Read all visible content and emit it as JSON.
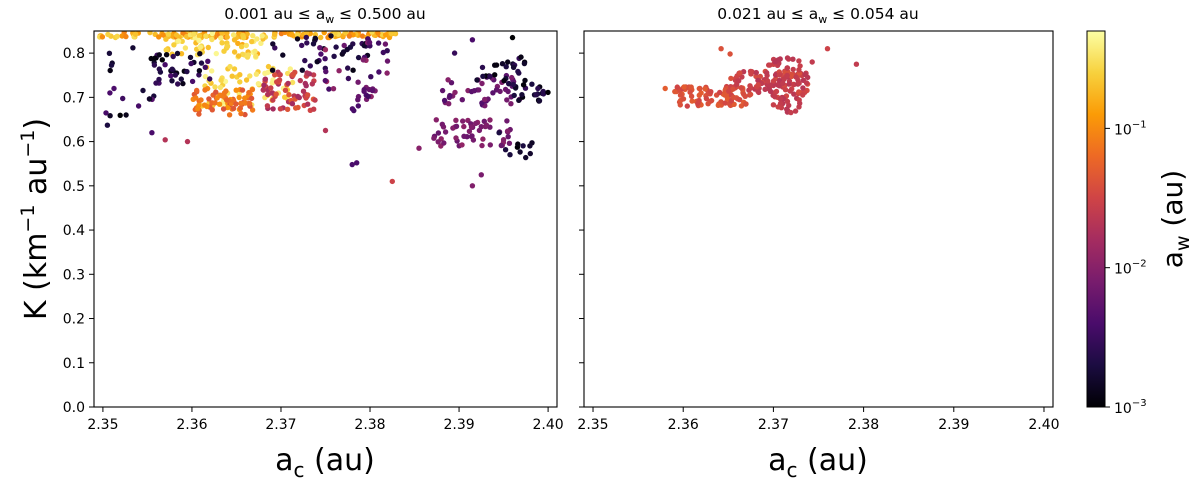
{
  "chart_data": [
    {
      "type": "scatter",
      "title": "0.001 au ≤ a_w ≤ 0.500 au",
      "title_parts": {
        "left": "0.001 au  ≤  a",
        "sub": "w",
        "right": "  ≤  0.500 au"
      },
      "xlabel": "a_c (au)",
      "ylabel": "K (km⁻¹ au⁻¹)",
      "xlim": [
        2.349,
        2.401
      ],
      "ylim": [
        0.0,
        0.85
      ],
      "grid": false,
      "color_variable": "a_w (au)",
      "xticks": [
        "2.35",
        "2.36",
        "2.37",
        "2.38",
        "2.39",
        "2.40"
      ],
      "yticks": [
        "0.0",
        "0.1",
        "0.2",
        "0.3",
        "0.4",
        "0.5",
        "0.6",
        "0.7",
        "0.8"
      ],
      "clusters": [
        {
          "x": [
            2.3495,
            2.383
          ],
          "y": [
            0.835,
            0.848
          ],
          "aw_range": [
            0.08,
            0.3
          ],
          "n": 150
        },
        {
          "x": [
            2.357,
            2.368
          ],
          "y": [
            0.79,
            0.845
          ],
          "aw_range": [
            0.15,
            0.45
          ],
          "n": 70
        },
        {
          "x": [
            2.361,
            2.372
          ],
          "y": [
            0.68,
            0.78
          ],
          "aw_range": [
            0.2,
            0.45
          ],
          "n": 60
        },
        {
          "x": [
            2.36,
            2.367
          ],
          "y": [
            0.66,
            0.72
          ],
          "aw_range": [
            0.04,
            0.12
          ],
          "n": 70
        },
        {
          "x": [
            2.368,
            2.374
          ],
          "y": [
            0.67,
            0.76
          ],
          "aw_range": [
            0.015,
            0.05
          ],
          "n": 70
        },
        {
          "x": [
            2.355,
            2.362
          ],
          "y": [
            0.73,
            0.8
          ],
          "aw_range": [
            0.001,
            0.004
          ],
          "n": 40
        },
        {
          "x": [
            2.369,
            2.382
          ],
          "y": [
            0.76,
            0.84
          ],
          "aw_range": [
            0.001,
            0.004
          ],
          "n": 40
        },
        {
          "x": [
            2.35,
            2.356
          ],
          "y": [
            0.64,
            0.82
          ],
          "aw_range": [
            0.001,
            0.005
          ],
          "n": 18
        },
        {
          "x": [
            2.374,
            2.382
          ],
          "y": [
            0.7,
            0.83
          ],
          "aw_range": [
            0.003,
            0.015
          ],
          "n": 30
        },
        {
          "x": [
            2.387,
            2.396
          ],
          "y": [
            0.59,
            0.65
          ],
          "aw_range": [
            0.006,
            0.012
          ],
          "n": 55
        },
        {
          "x": [
            2.388,
            2.397
          ],
          "y": [
            0.68,
            0.75
          ],
          "aw_range": [
            0.004,
            0.01
          ],
          "n": 45
        },
        {
          "x": [
            2.392,
            2.398
          ],
          "y": [
            0.73,
            0.8
          ],
          "aw_range": [
            0.001,
            0.003
          ],
          "n": 25
        },
        {
          "x": [
            2.396,
            2.4
          ],
          "y": [
            0.69,
            0.73
          ],
          "aw_range": [
            0.001,
            0.003
          ],
          "n": 22
        },
        {
          "x": [
            2.395,
            2.399
          ],
          "y": [
            0.56,
            0.6
          ],
          "aw_range": [
            0.001,
            0.002
          ],
          "n": 10
        },
        {
          "x": [
            2.378,
            2.381
          ],
          "y": [
            0.67,
            0.72
          ],
          "aw_range": [
            0.003,
            0.008
          ],
          "n": 10
        }
      ],
      "points": [
        {
          "x": 2.378,
          "y": 0.548,
          "aw": 0.004
        },
        {
          "x": 2.3785,
          "y": 0.552,
          "aw": 0.004
        },
        {
          "x": 2.3825,
          "y": 0.51,
          "aw": 0.03
        },
        {
          "x": 2.3915,
          "y": 0.5,
          "aw": 0.009
        },
        {
          "x": 2.357,
          "y": 0.604,
          "aw": 0.02
        },
        {
          "x": 2.3595,
          "y": 0.6,
          "aw": 0.02
        },
        {
          "x": 2.3555,
          "y": 0.62,
          "aw": 0.004
        },
        {
          "x": 2.375,
          "y": 0.625,
          "aw": 0.02
        },
        {
          "x": 2.3505,
          "y": 0.637,
          "aw": 0.002
        },
        {
          "x": 2.3855,
          "y": 0.585,
          "aw": 0.01
        },
        {
          "x": 2.3925,
          "y": 0.525,
          "aw": 0.008
        },
        {
          "x": 2.3915,
          "y": 0.83,
          "aw": 0.004
        },
        {
          "x": 2.3895,
          "y": 0.8,
          "aw": 0.003
        },
        {
          "x": 2.396,
          "y": 0.835,
          "aw": 0.001
        },
        {
          "x": 2.3945,
          "y": 0.62,
          "aw": 0.002
        }
      ]
    },
    {
      "type": "scatter",
      "title": "0.021 au ≤ a_w ≤ 0.054 au",
      "title_parts": {
        "left": "0.021 au  ≤  a",
        "sub": "w",
        "right": "  ≤  0.054 au"
      },
      "xlabel": "a_c (au)",
      "xlim": [
        2.349,
        2.401
      ],
      "ylim": [
        0.0,
        0.85
      ],
      "grid": false,
      "color_variable": "a_w (au)",
      "xticks": [
        "2.35",
        "2.36",
        "2.37",
        "2.38",
        "2.39",
        "2.40"
      ],
      "clusters": [
        {
          "x": [
            2.359,
            2.367
          ],
          "y": [
            0.68,
            0.725
          ],
          "aw_range": [
            0.03,
            0.05
          ],
          "n": 90
        },
        {
          "x": [
            2.365,
            2.374
          ],
          "y": [
            0.7,
            0.76
          ],
          "aw_range": [
            0.021,
            0.04
          ],
          "n": 100
        },
        {
          "x": [
            2.369,
            2.373
          ],
          "y": [
            0.665,
            0.79
          ],
          "aw_range": [
            0.021,
            0.03
          ],
          "n": 60
        }
      ],
      "points": [
        {
          "x": 2.376,
          "y": 0.81,
          "aw": 0.03
        },
        {
          "x": 2.3792,
          "y": 0.775,
          "aw": 0.025
        },
        {
          "x": 2.3642,
          "y": 0.81,
          "aw": 0.04
        },
        {
          "x": 2.3652,
          "y": 0.798,
          "aw": 0.04
        },
        {
          "x": 2.358,
          "y": 0.72,
          "aw": 0.05
        },
        {
          "x": 2.3743,
          "y": 0.78,
          "aw": 0.025
        }
      ]
    }
  ],
  "colorbar": {
    "label_main": "a",
    "label_sub": "w",
    "label_rest": " (au)",
    "scale": "log",
    "range": [
      0.001,
      0.5
    ],
    "ticks": [
      {
        "value": 0.001,
        "base": "10",
        "exp": "−3"
      },
      {
        "value": 0.01,
        "base": "10",
        "exp": "−2"
      },
      {
        "value": 0.1,
        "base": "10",
        "exp": "−1"
      }
    ],
    "colormap": "inferno",
    "colormap_stops": [
      "#000004",
      "#1b0c41",
      "#4a0c6b",
      "#781c6d",
      "#a52c60",
      "#cf4446",
      "#ed6925",
      "#fb9b06",
      "#f7d13d",
      "#fcffa4"
    ]
  },
  "texts": {
    "ylabel_main": "K (km",
    "ylabel_exp1": "−1",
    "ylabel_mid": " au",
    "ylabel_exp2": "−1",
    "ylabel_end": ")",
    "xlabel_main": "a",
    "xlabel_sub": "c",
    "xlabel_rest": " (au)"
  }
}
